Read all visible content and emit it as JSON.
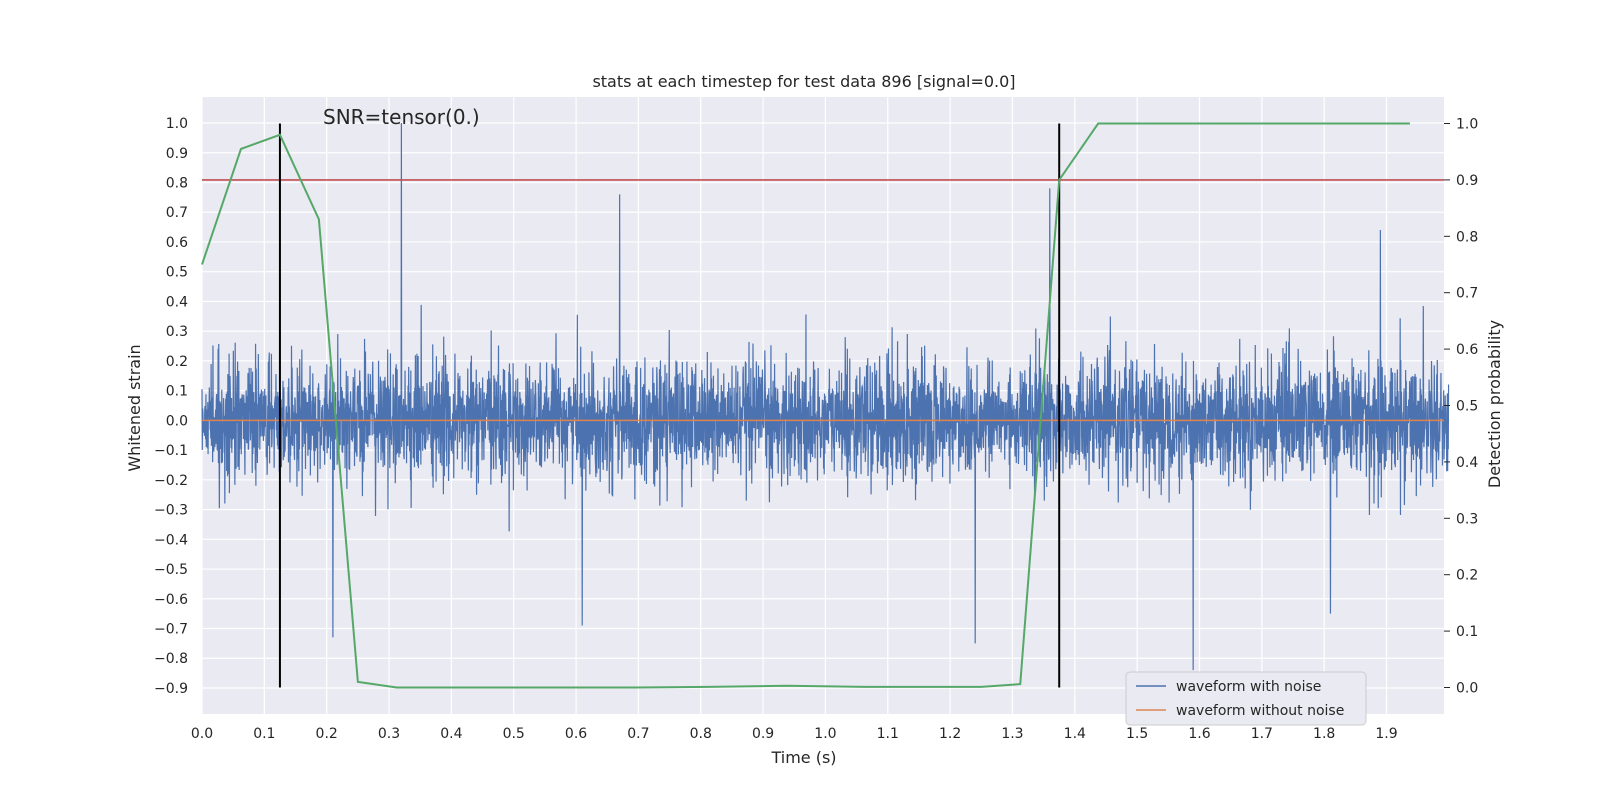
{
  "chart_data": {
    "type": "line",
    "title": "stats at each timestep for test data 896 [signal=0.0]",
    "xlabel": "Time (s)",
    "ylabel": "Whitened strain",
    "y2label": "Detection probability",
    "xlim": [
      0.0,
      1.9922
    ],
    "ylim": [
      -0.9875,
      1.0875
    ],
    "y2lim": [
      -0.047,
      1.047
    ],
    "x_ticks": [
      "0.0",
      "0.1",
      "0.2",
      "0.3",
      "0.4",
      "0.5",
      "0.6",
      "0.7",
      "0.8",
      "0.9",
      "1.0",
      "1.1",
      "1.2",
      "1.3",
      "1.4",
      "1.5",
      "1.6",
      "1.7",
      "1.8",
      "1.9"
    ],
    "y_ticks": [
      "1.0",
      "0.9",
      "0.8",
      "0.7",
      "0.6",
      "0.5",
      "0.4",
      "0.3",
      "0.2",
      "0.1",
      "0.0",
      "−0.1",
      "−0.2",
      "−0.3",
      "−0.4",
      "−0.5",
      "−0.6",
      "−0.7",
      "−0.8",
      "−0.9"
    ],
    "y2_ticks": [
      "1.0",
      "0.9",
      "0.8",
      "0.7",
      "0.6",
      "0.5",
      "0.4",
      "0.3",
      "0.2",
      "0.1",
      "0.0"
    ],
    "annotation": "SNR=tensor(0.)",
    "grid": true,
    "legend_position": "lower-right",
    "colors": {
      "noise": "#4c72b0",
      "clean": "#dd8452",
      "probability": "#55a868",
      "threshold": "#c44e52",
      "markers": "#000000",
      "plot_bg": "#eaeaf2",
      "grid": "#ffffff"
    },
    "series": [
      {
        "name": "waveform with noise",
        "kind": "noise_trace",
        "n_samples": 4096,
        "sample_rate_hz": 2048,
        "envelope_abs": 0.3,
        "max_value": 1.0,
        "min_value": -0.84,
        "notable_peaks": [
          [
            0.32,
            1.0
          ],
          [
            0.67,
            0.76
          ],
          [
            1.36,
            0.78
          ],
          [
            1.89,
            0.64
          ],
          [
            1.59,
            -0.84
          ],
          [
            0.21,
            -0.73
          ],
          [
            1.81,
            -0.65
          ],
          [
            1.24,
            -0.75
          ],
          [
            0.61,
            -0.69
          ]
        ]
      },
      {
        "name": "waveform without noise",
        "x": [
          0.0,
          1.9922
        ],
        "y": [
          0.0,
          0.0
        ]
      },
      {
        "name": "detection probability",
        "axis": "right",
        "x": [
          0.0,
          0.0625,
          0.125,
          0.1875,
          0.25,
          0.3125,
          0.4375,
          0.5625,
          0.6875,
          0.8125,
          0.9375,
          1.0625,
          1.1875,
          1.25,
          1.3125,
          1.375,
          1.4375,
          1.5625,
          1.6875,
          1.8125,
          1.9375
        ],
        "y": [
          0.75,
          0.955,
          0.98,
          0.83,
          0.01,
          0.0,
          0.0,
          0.0,
          0.0,
          0.001,
          0.003,
          0.001,
          0.001,
          0.001,
          0.006,
          0.9,
          1.0,
          1.0,
          1.0,
          1.0,
          1.0
        ]
      }
    ],
    "threshold": {
      "axis": "right",
      "y": 0.9
    },
    "markers": [
      {
        "x": 0.125
      },
      {
        "x": 1.375
      }
    ],
    "marker_span_y2": [
      0.0,
      1.0
    ]
  },
  "legend": {
    "items": [
      {
        "label": "waveform with noise",
        "color": "#4c72b0"
      },
      {
        "label": "waveform without noise",
        "color": "#dd8452"
      }
    ]
  }
}
